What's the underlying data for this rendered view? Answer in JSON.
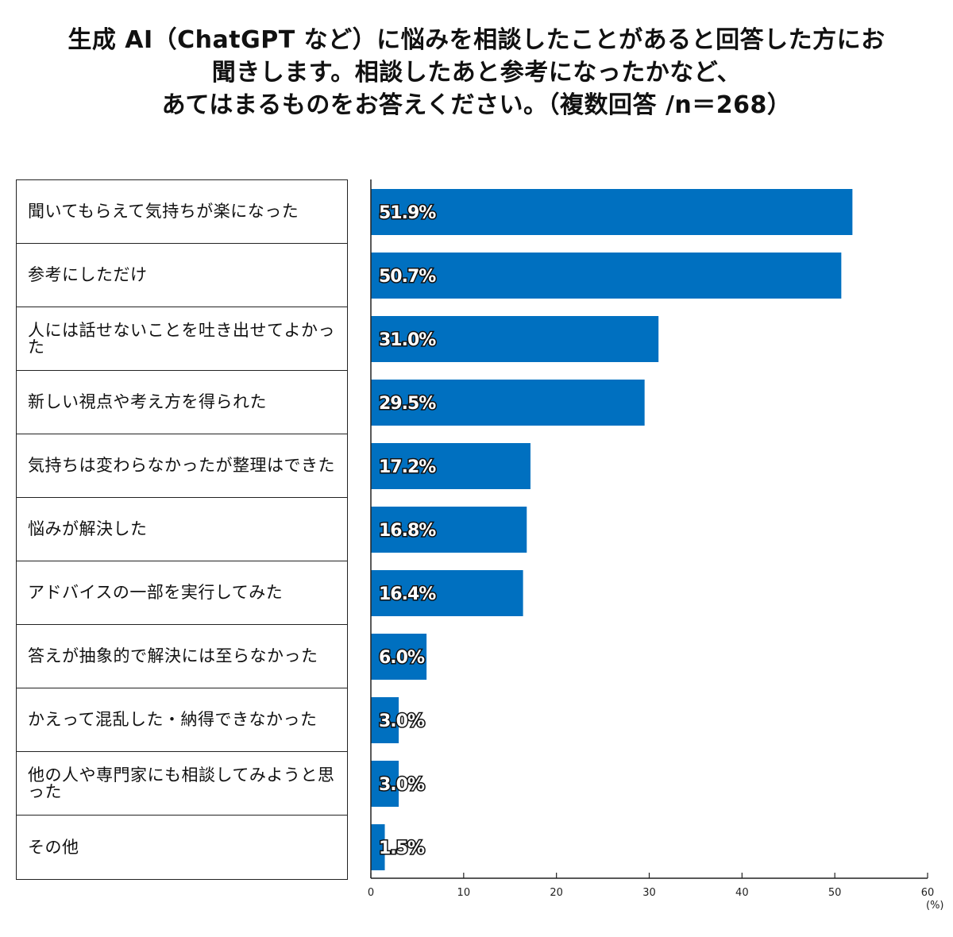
{
  "title": {
    "line1": "生成 AI（ChatGPT など）に悩みを相談したことがあると回答した方にお",
    "line2": "聞きします。相談したあと参考になったかなど、",
    "line3": "あてはまるものをお答えください。（複数回答 /n＝268）"
  },
  "chart_data": {
    "type": "bar",
    "orientation": "horizontal",
    "categories": [
      "聞いてもらえて気持ちが楽になった",
      "参考にしただけ",
      "人には話せないことを吐き出せてよかった",
      "新しい視点や考え方を得られた",
      "気持ちは変わらなかったが整理はできた",
      "悩みが解決した",
      "アドバイスの一部を実行してみた",
      "答えが抽象的で解決には至らなかった",
      "かえって混乱した・納得できなかった",
      "他の人や専門家にも相談してみようと思った",
      "その他"
    ],
    "values": [
      51.9,
      50.7,
      31.0,
      29.5,
      17.2,
      16.8,
      16.4,
      6.0,
      3.0,
      3.0,
      1.5
    ],
    "value_labels": [
      "51.9%",
      "50.7%",
      "31.0%",
      "29.5%",
      "17.2%",
      "16.8%",
      "16.4%",
      "6.0%",
      "3.0%",
      "3.0%",
      "1.5%"
    ],
    "xlim": [
      0,
      60
    ],
    "x_ticks": [
      "0",
      "10",
      "20",
      "30",
      "40",
      "50",
      "60"
    ],
    "x_unit": "(%)",
    "bar_color": "#0070c0",
    "grid": false
  }
}
